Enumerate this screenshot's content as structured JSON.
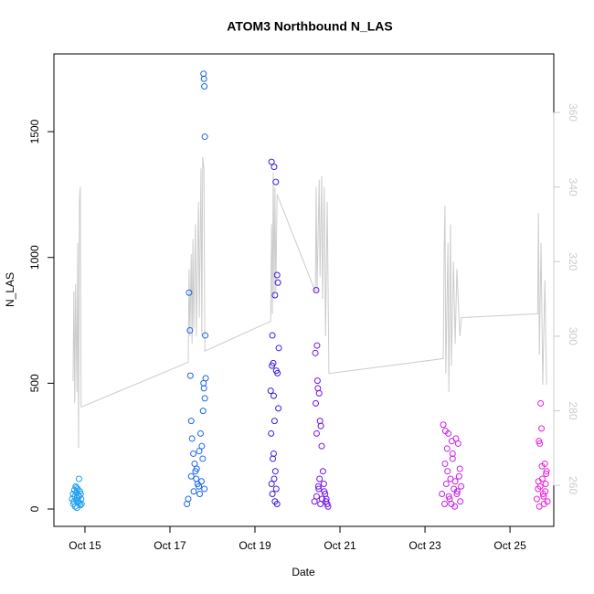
{
  "chart_data": {
    "type": "scatter",
    "title": "ATOM3 Northbound N_LAS",
    "x_label": "Date",
    "y_label": "N_LAS",
    "xlim": [
      14.27,
      26.03
    ],
    "xticks": [
      {
        "value": 15,
        "label": "Oct 15"
      },
      {
        "value": 17,
        "label": "Oct 17"
      },
      {
        "value": 19,
        "label": "Oct 19"
      },
      {
        "value": 21,
        "label": "Oct 21"
      },
      {
        "value": 23,
        "label": "Oct 23"
      },
      {
        "value": 25,
        "label": "Oct 25"
      }
    ],
    "ylim": [
      -69,
      1809
    ],
    "yticks": [
      0,
      500,
      1000,
      1500
    ],
    "y2lim": [
      249,
      375.7
    ],
    "y2ticks": [
      260,
      280,
      300,
      320,
      340,
      360
    ],
    "series": [
      {
        "color": "#1e9fef",
        "x": [
          14.7,
          14.72,
          14.73,
          14.75,
          14.76,
          14.77,
          14.78,
          14.79,
          14.8,
          14.81,
          14.82,
          14.83,
          14.84,
          14.85,
          14.86,
          14.87,
          14.88,
          14.89,
          14.9,
          14.91,
          14.92,
          14.8,
          14.74,
          14.86
        ],
        "values": [
          40,
          60,
          20,
          75,
          50,
          10,
          90,
          35,
          65,
          5,
          45,
          80,
          30,
          55,
          120,
          25,
          70,
          15,
          60,
          40,
          20,
          85,
          30,
          50
        ]
      },
      {
        "color": "#1a66e8",
        "x": [
          17.4,
          17.45,
          17.47,
          17.48,
          17.5,
          17.52,
          17.55,
          17.58,
          17.6,
          17.62,
          17.65,
          17.68,
          17.7,
          17.72,
          17.75,
          17.77,
          17.79,
          17.8,
          17.81,
          17.82,
          17.83,
          17.84,
          17.43,
          17.5,
          17.56,
          17.63,
          17.69,
          17.74,
          17.79,
          17.82,
          17.78,
          17.8,
          17.81
        ],
        "values": [
          20,
          860,
          710,
          530,
          350,
          280,
          220,
          180,
          150,
          120,
          100,
          90,
          60,
          300,
          250,
          200,
          1730,
          1710,
          1680,
          1480,
          690,
          520,
          40,
          130,
          70,
          160,
          230,
          110,
          500,
          440,
          390,
          480,
          80
        ]
      },
      {
        "color": "#3a1de0",
        "x": [
          19.37,
          19.39,
          19.41,
          19.43,
          19.45,
          19.47,
          19.49,
          19.52,
          19.54,
          19.56,
          19.38,
          19.4,
          19.42,
          19.44,
          19.46,
          19.48,
          19.5,
          19.53,
          19.55,
          19.39,
          19.41,
          19.44,
          19.47,
          19.5,
          19.52,
          19.45
        ],
        "values": [
          470,
          1380,
          690,
          580,
          1360,
          850,
          1300,
          930,
          900,
          640,
          300,
          570,
          200,
          450,
          350,
          150,
          550,
          540,
          400,
          100,
          60,
          220,
          30,
          80,
          20,
          120
        ]
      },
      {
        "color": "#7214e6",
        "x": [
          20.4,
          20.42,
          20.44,
          20.46,
          20.48,
          20.51,
          20.53,
          20.55,
          20.57,
          20.6,
          20.62,
          20.65,
          20.68,
          20.7,
          20.72,
          20.43,
          20.45,
          20.47,
          20.5,
          20.52,
          20.54,
          20.58,
          20.63,
          20.67,
          20.45,
          20.49
        ],
        "values": [
          30,
          620,
          870,
          650,
          480,
          460,
          350,
          330,
          250,
          150,
          100,
          60,
          40,
          20,
          10,
          420,
          300,
          510,
          80,
          120,
          20,
          40,
          70,
          30,
          50,
          90
        ]
      },
      {
        "color": "#c81ee8",
        "x": [
          23.4,
          23.43,
          23.46,
          23.48,
          23.5,
          23.53,
          23.55,
          23.58,
          23.6,
          23.63,
          23.65,
          23.68,
          23.7,
          23.73,
          23.75,
          23.78,
          23.8,
          23.83,
          23.85,
          23.47,
          23.56,
          23.65,
          23.71,
          23.82,
          23.52,
          23.62,
          23.76
        ],
        "values": [
          60,
          335,
          20,
          310,
          100,
          150,
          300,
          40,
          120,
          270,
          200,
          80,
          10,
          280,
          60,
          260,
          130,
          30,
          90,
          180,
          50,
          220,
          110,
          160,
          240,
          20,
          70
        ]
      },
      {
        "color": "#ea1edc",
        "x": [
          25.63,
          25.66,
          25.68,
          25.7,
          25.72,
          25.74,
          25.76,
          25.78,
          25.8,
          25.82,
          25.84,
          25.86,
          25.88,
          25.71,
          25.69,
          25.75,
          25.79,
          25.85,
          25.67,
          25.83
        ],
        "values": [
          40,
          80,
          270,
          260,
          420,
          320,
          120,
          60,
          20,
          180,
          100,
          150,
          30,
          90,
          10,
          170,
          50,
          140,
          110,
          70
        ]
      },
      {
        "axis": "y2",
        "color": "#cccccc",
        "x": [
          14.72,
          14.74,
          14.76,
          14.78,
          14.81,
          14.83,
          14.85,
          14.87,
          14.89,
          14.91,
          17.43,
          17.45,
          17.47,
          17.5,
          17.52,
          17.54,
          17.56,
          17.6,
          17.62,
          17.67,
          17.69,
          17.73,
          17.75,
          17.77,
          17.8,
          17.82,
          19.37,
          19.39,
          19.41,
          19.43,
          19.45,
          19.47,
          19.49,
          19.52,
          20.42,
          20.44,
          20.46,
          20.51,
          20.53,
          20.57,
          20.59,
          20.63,
          20.66,
          20.7,
          20.74,
          23.43,
          23.45,
          23.47,
          23.49,
          23.54,
          23.56,
          23.6,
          23.62,
          23.67,
          23.71,
          23.75,
          23.82,
          23.86,
          25.65,
          25.67,
          25.69,
          25.73,
          25.77,
          25.82,
          25.86
        ],
        "values": [
          288,
          312,
          282,
          314,
          285,
          325,
          270,
          336,
          340,
          281,
          293,
          318,
          300,
          322,
          298,
          326,
          302,
          330,
          300,
          336,
          305,
          345,
          300,
          348,
          345,
          296,
          304,
          330,
          306,
          344,
          310,
          340,
          312,
          338,
          312,
          340,
          312,
          342,
          316,
          343,
          310,
          340,
          300,
          336,
          290,
          294,
          322,
          335,
          290,
          325,
          285,
          330,
          292,
          320,
          298,
          318,
          300,
          305,
          306,
          333,
          295,
          325,
          287,
          315,
          287
        ]
      }
    ]
  }
}
